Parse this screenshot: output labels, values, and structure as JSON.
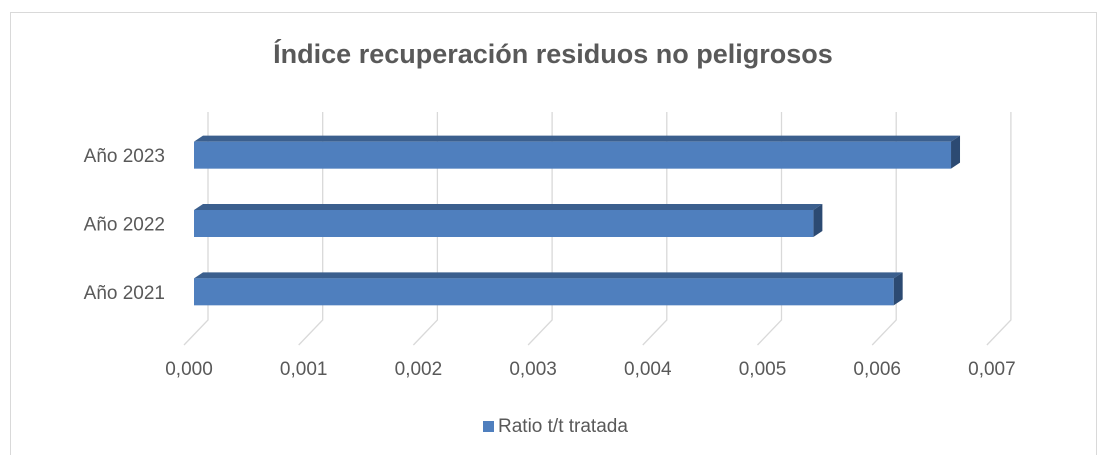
{
  "chart_data": {
    "type": "bar3d-horizontal",
    "title": "Índice recuperación residuos no peligrosos",
    "categories": [
      "Año 2021",
      "Año 2022",
      "Año 2023"
    ],
    "series": [
      {
        "name": "Ratio t/t tratada",
        "color": "#4f7fbe",
        "values": [
          0.0061,
          0.0054,
          0.0066
        ]
      }
    ],
    "xlim": [
      0,
      0.007
    ],
    "xticks": [
      {
        "value": 0,
        "label": "0,000"
      },
      {
        "value": 0.001,
        "label": "0,001"
      },
      {
        "value": 0.002,
        "label": "0,002"
      },
      {
        "value": 0.003,
        "label": "0,003"
      },
      {
        "value": 0.004,
        "label": "0,004"
      },
      {
        "value": 0.005,
        "label": "0,005"
      },
      {
        "value": 0.006,
        "label": "0,006"
      },
      {
        "value": 0.007,
        "label": "0,007"
      }
    ],
    "grid": true,
    "legend": "bottom"
  }
}
